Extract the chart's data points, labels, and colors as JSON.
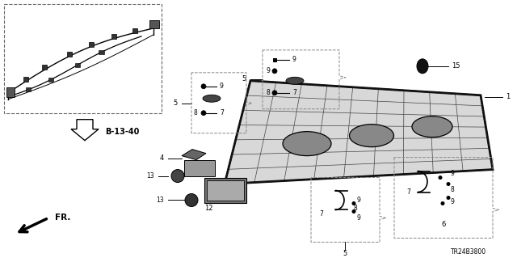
{
  "bg_color": "#ffffff",
  "fig_width": 6.4,
  "fig_height": 3.19,
  "dpi": 100,
  "diagram_code": "TR24B3800",
  "ref_label": "B-13-40",
  "fr_label": "FR."
}
